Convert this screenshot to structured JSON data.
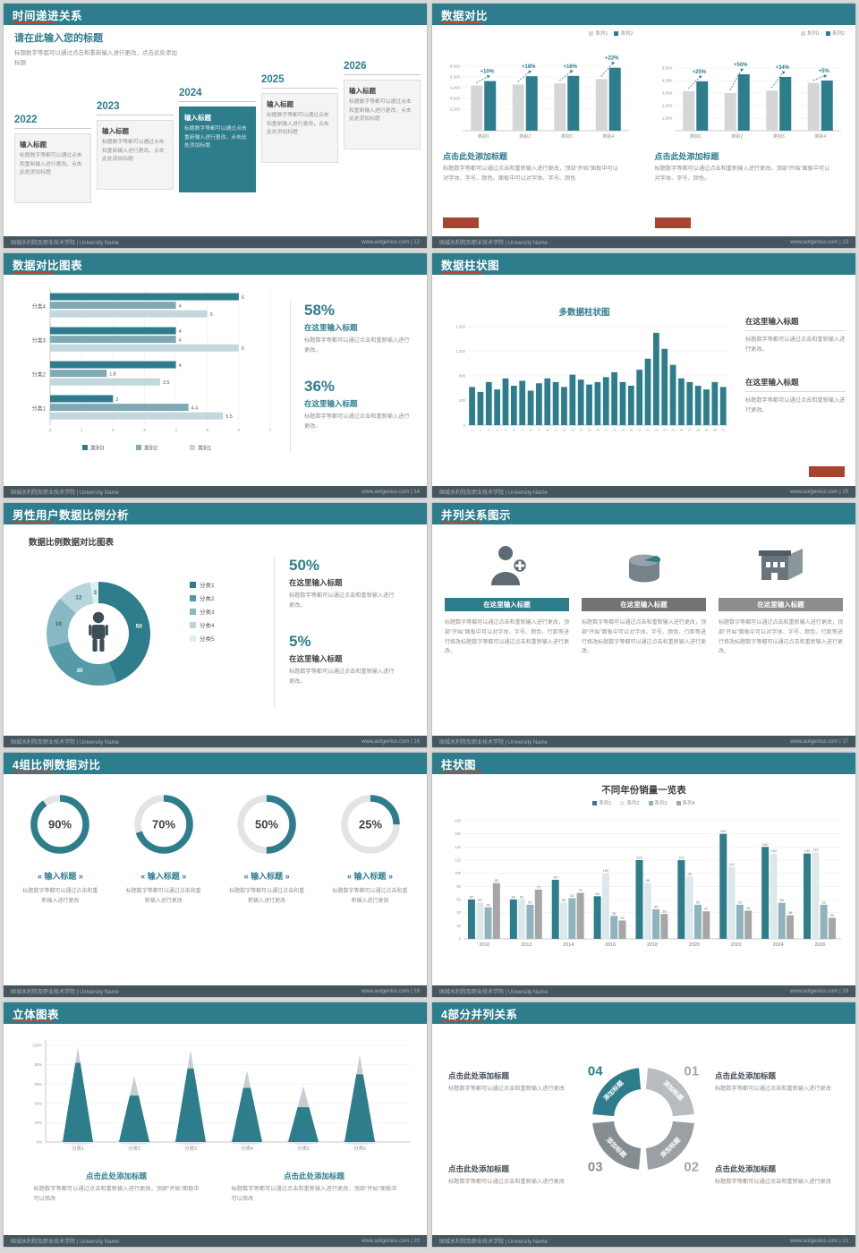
{
  "ui": {
    "colors": {
      "teal": "#2e7d8c",
      "light_gray": "#d6d6d6",
      "red": "#a8432f",
      "header_bg": "#2e7d8c",
      "footer_bg": "#46565f",
      "accent_red": "#c4452c"
    }
  },
  "footer": {
    "org": "国城水利院及职业技术学院 | University Name",
    "site": "www.aotgenius.com"
  },
  "slides": {
    "s12": {
      "header": "时间递进关系",
      "footer_right": "www.aotgenius.com | 12",
      "intro_title": "请在此输入您的标题",
      "intro_body": "标题数字等都可以通过点击和重新输入进行更改，点击此处添加标题",
      "items": [
        {
          "year": "2022",
          "title": "输入标题",
          "body": "标题数字等都可以通过点击和重新输入进行更改。点击此处添加标题",
          "highlight": false
        },
        {
          "year": "2023",
          "title": "输入标题",
          "body": "标题数字等都可以通过点击和重新输入进行更改。点击此处添加标题",
          "highlight": false
        },
        {
          "year": "2024",
          "title": "输入标题",
          "body": "标题数字等都可以通过点击重新输入进行更改，点击此处添加标题",
          "highlight": true
        },
        {
          "year": "2025",
          "title": "输入标题",
          "body": "标题数字等都可以通过点击和重新输入进行更改，点击此处添加标题",
          "highlight": false
        },
        {
          "year": "2026",
          "title": "输入标题",
          "body": "标题数字等都可以通过点击和重新输入进行更改，点击此处添加标题",
          "highlight": false
        }
      ]
    },
    "s13": {
      "header": "数据对比",
      "footer_right": "www.aotgenius.com | 13",
      "panels": [
        {
          "legend": [
            "系列1",
            "系列2"
          ],
          "chart_data": {
            "type": "bar",
            "categories": [
              "类别1",
              "类别2",
              "类别3",
              "类别4"
            ],
            "series": [
              {
                "name": "系列1",
                "values": [
                  4200,
                  4300,
                  4400,
                  4800
                ]
              },
              {
                "name": "系列2",
                "values": [
                  4620,
                  5070,
                  5100,
                  5860
                ]
              }
            ],
            "growth_labels": [
              "+10%",
              "+18%",
              "+16%",
              "+22%"
            ],
            "ytick_vals": [
              2000,
              3000,
              4000,
              5000,
              6000
            ],
            "ytick_labels": [
              "2,000",
              "3,000",
              "4,000",
              "5,000",
              "6,000"
            ],
            "ymax": 7000
          },
          "title": "点击此处添加标题",
          "body": "标题数字等都可以通过点击和重新输入进行更改，顶部“开始”面板中可以对字体、字号、颜色。面板中可以对字体、字号、颜色"
        },
        {
          "legend": [
            "系列1",
            "系列2"
          ],
          "chart_data": {
            "type": "bar",
            "categories": [
              "类别1",
              "类别2",
              "类别3",
              "类别4"
            ],
            "series": [
              {
                "name": "系列1",
                "values": [
                  3150,
                  3000,
                  3200,
                  3810
                ]
              },
              {
                "name": "系列2",
                "values": [
                  3940,
                  4500,
                  4290,
                  4000
                ]
              }
            ],
            "growth_labels": [
              "+25%",
              "+50%",
              "+34%",
              "+5%"
            ],
            "ytick_vals": [
              1000,
              2000,
              3000,
              4000,
              5000
            ],
            "ytick_labels": [
              "1,000",
              "2,000",
              "3,000",
              "4,000",
              "5,000"
            ],
            "ymax": 6000
          },
          "title": "点击此处添加标题",
          "body": "标题数字等都可以通过点击和重新输入进行更改，顶部“开始”面板中可以对字体、字号、颜色。"
        }
      ]
    },
    "s14": {
      "header": "数据对比图表",
      "footer_right": "www.aotgenius.com | 14",
      "chart_data": {
        "type": "bar",
        "orientation": "horizontal",
        "categories": [
          "分类4",
          "分类3",
          "分类2",
          "分类1"
        ],
        "series": [
          {
            "name": "类别3",
            "values": [
              6,
              4,
              4,
              2
            ]
          },
          {
            "name": "类别2",
            "values": [
              4,
              4,
              1.8,
              4.4
            ]
          },
          {
            "name": "类别1",
            "values": [
              5,
              6,
              3.5,
              5.5
            ]
          }
        ],
        "colors": [
          "#2e7d8c",
          "#7fa9b4",
          "#c2d8dd"
        ],
        "xticks": [
          0,
          1,
          2,
          3,
          4,
          5,
          6,
          7
        ],
        "xmax": 7
      },
      "stats": [
        {
          "pct": "58%",
          "title": "在这里输入标题",
          "body": "标题数字等都可以通过点击和重新输入进行更改。"
        },
        {
          "pct": "36%",
          "title": "在这里输入标题",
          "body": "标题数字等都可以通过点击和重新输入进行更改。"
        }
      ]
    },
    "s15": {
      "header": "数据柱状图",
      "footer_right": "www.aotgenius.com | 15",
      "chart_data": {
        "type": "bar",
        "title": "多数据柱状图",
        "values": [
          620,
          540,
          700,
          580,
          760,
          640,
          720,
          560,
          680,
          760,
          700,
          620,
          820,
          740,
          660,
          700,
          780,
          860,
          700,
          640,
          900,
          1080,
          1500,
          1240,
          980,
          760,
          700,
          640,
          580,
          700,
          620
        ],
        "xlabels": [
          "1",
          "2",
          "3",
          "4",
          "5",
          "6",
          "7",
          "8",
          "9",
          "10",
          "11",
          "12",
          "13",
          "14",
          "15",
          "16",
          "17",
          "18",
          "19",
          "20",
          "21",
          "22",
          "23",
          "24",
          "25",
          "26",
          "27",
          "28",
          "29",
          "30",
          "31"
        ],
        "ytick_vals": [
          0,
          400,
          800,
          1200,
          1600
        ],
        "ytick_labels": [
          "0",
          "400",
          "800",
          "1,200",
          "1,600"
        ],
        "ymax": 1600
      },
      "blocks": [
        {
          "title": "在这里输入标题",
          "body": "标题数字等都可以通过点击和重新输入进行更改。"
        },
        {
          "title": "在这里输入标题",
          "body": "标题数字等都可以通过点击和重新输入进行更改。"
        }
      ]
    },
    "s16": {
      "header": "男性用户数据比例分析",
      "footer_right": "www.aotgenius.com | 16",
      "chart_data": {
        "type": "pie",
        "title": "数据比例数据对比图表",
        "slices": [
          {
            "label": "50",
            "value": 50
          },
          {
            "label": "30",
            "value": 30
          },
          {
            "label": "18",
            "value": 18
          },
          {
            "label": "12",
            "value": 12
          },
          {
            "label": "3",
            "value": 3
          }
        ],
        "colors": [
          "#2e7d8c",
          "#569aa8",
          "#86b9c3",
          "#b7d6dc",
          "#dfeef1"
        ],
        "legend": [
          "分类1",
          "分类2",
          "分类3",
          "分类4",
          "分类5"
        ]
      },
      "stats": [
        {
          "pct": "50%",
          "title": "在这里输入标题",
          "body": "标题数字等都可以通过点击和重新输入进行更改。"
        },
        {
          "pct": "5%",
          "title": "在这里输入标题",
          "body": "标题数字等都可以通过点击和重新输入进行更改。"
        }
      ]
    },
    "s17": {
      "header": "并列关系图示",
      "footer_right": "www.aotgenius.com | 17",
      "items": [
        {
          "icon": "nurse-icon",
          "title": "在这里输入标题",
          "color": "#2e7d8c",
          "body": "标题数字等都可以通过点击和重新输入进行更改，顶部“开始”面板中可以对字体、字号、颜色、行距等进行修改标题数字等都可以通过点击和重新输入进行更改。"
        },
        {
          "icon": "cylinder-3d-icon",
          "title": "在这里输入标题",
          "color": "#737373",
          "body": "标题数字等都可以通过点击和重新输入进行更改，顶部“开始”面板中可以对字体、字号、颜色、行距等进行修改标题数字等都可以通过点击和重新输入进行更改。"
        },
        {
          "icon": "building-icon",
          "title": "在这里输入标题",
          "color": "#8c8c8c",
          "body": "标题数字等都可以通过点击和重新输入进行更改，顶部“开始”面板中可以对字体、字号、颜色、行距等进行修改标题数字等都可以通过点击和重新输入进行更改。"
        }
      ]
    },
    "s18": {
      "header": "4组比例数据对比",
      "footer_right": "www.aotgenius.com | 18",
      "rings": [
        {
          "pct": 90,
          "label": "90%",
          "title": "« 输入标题 »",
          "body": "标题数字等都可以通过点击和重新输入进行更改"
        },
        {
          "pct": 70,
          "label": "70%",
          "title": "« 输入标题 »",
          "body": "标题数字等都可以通过点击和重新输入进行更改"
        },
        {
          "pct": 50,
          "label": "50%",
          "title": "« 输入标题 »",
          "body": "标题数字等都可以通过点击和重新输入进行更改"
        },
        {
          "pct": 25,
          "label": "25%",
          "title": "« 输入标题 »",
          "body": "标题数字等都可以通过点击和重新输入进行更改"
        }
      ]
    },
    "s19": {
      "header": "柱状图",
      "footer_right": "www.aotgenius.com | 19",
      "chart_data": {
        "type": "bar",
        "title": "不同年份销量一览表",
        "years": [
          "2010",
          "2012",
          "2014",
          "2016",
          "2018",
          "2020",
          "2022",
          "2024",
          "2026"
        ],
        "series": [
          {
            "name": "系列1",
            "values": [
              60,
              60,
              90,
              65,
              120,
              120,
              160,
              140,
              130
            ]
          },
          {
            "name": "系列2",
            "values": [
              55,
              60,
              55,
              100,
              85,
              95,
              110,
              130,
              132
            ]
          },
          {
            "name": "系列3",
            "values": [
              48,
              52,
              62,
              35,
              45,
              52,
              52,
              55,
              52
            ]
          },
          {
            "name": "系列4",
            "values": [
              85,
              75,
              70,
              28,
              38,
              42,
              43,
              36,
              32
            ]
          }
        ],
        "colors": [
          "#2e7d8c",
          "#dde8eb",
          "#8fb4bd",
          "#a6a6a6"
        ],
        "ymax": 180
      }
    },
    "s20": {
      "header": "立体图表",
      "footer_right": "www.aotgenius.com | 20",
      "chart_data": {
        "type": "bar",
        "style": "cone-3d",
        "categories": [
          "分类1",
          "分类2",
          "分类3",
          "分类4",
          "分类5",
          "分类6"
        ],
        "total": [
          98,
          68,
          95,
          74,
          58,
          90
        ],
        "fill": [
          82,
          48,
          76,
          56,
          36,
          70
        ],
        "ytick_vals": [
          0,
          20,
          40,
          60,
          80,
          100
        ],
        "ytick_labels": [
          "0%",
          "20%",
          "40%",
          "60%",
          "80%",
          "100%"
        ]
      },
      "blocks": [
        {
          "title": "点击此处添加标题",
          "body": "标题数字等都可以通过点击和重新输入进行更改，顶部“开始”面板中可以修改"
        },
        {
          "title": "点击此处添加标题",
          "body": "标题数字等都可以通过点击和重新输入进行更改，顶部“开始”面板中可以修改"
        }
      ]
    },
    "s21": {
      "header": "4部分并列关系",
      "footer_right": "www.aotgenius.com | 21",
      "segments": [
        {
          "num": "01",
          "label": "添加标题",
          "color": "#b8bcbe",
          "num_color": "#a6a6a6"
        },
        {
          "num": "02",
          "label": "添加标题",
          "color": "#9aa0a3",
          "num_color": "#a6a6a6"
        },
        {
          "num": "03",
          "label": "添加标题",
          "color": "#868d90",
          "num_color": "#8c8c8c"
        },
        {
          "num": "04",
          "label": "添加标题",
          "color": "#2e7d8c",
          "num_color": "#2e7d8c"
        }
      ],
      "blocks": [
        {
          "pos": "tl",
          "title": "点击此处添加标题",
          "body": "标题数字等都可以通过点击和重新输入进行更改"
        },
        {
          "pos": "tr",
          "title": "点击此处添加标题",
          "body": "标题数字等都可以通过点击和重新输入进行更改"
        },
        {
          "pos": "bl",
          "title": "点击此处添加标题",
          "body": "标题数字等都可以通过点击和重新输入进行更改"
        },
        {
          "pos": "br",
          "title": "点击此处添加标题",
          "body": "标题数字等都可以通过点击和重新输入进行更改"
        }
      ]
    }
  }
}
